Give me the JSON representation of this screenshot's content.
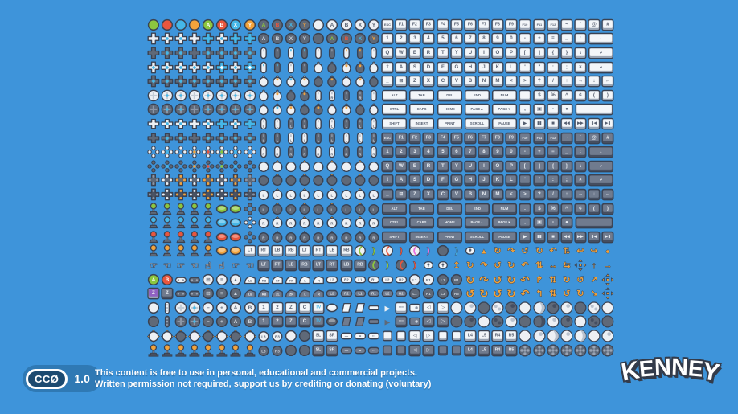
{
  "palette": {
    "background": "#3e94da",
    "outline": "#3a4252",
    "gr": "#8cc63e",
    "rd": "#e8563e",
    "bl": "#45b7e8",
    "or": "#f2a33c",
    "yl": "#f7b32a",
    "pu": "#9061c2",
    "mg": "#ea6fe0",
    "wh": "#edf0f4",
    "dk": "#5f6978",
    "mid": "#8b95a5",
    "badge_bg": "#2f79b4",
    "badge_capsule": "#1c4a70",
    "text": "#ffffff"
  },
  "license": {
    "badge": "CCØ",
    "version": "1.0"
  },
  "footer": {
    "line1": "This content is free to use in personal, educational and commercial projects.",
    "line2": "Written permission not required, support us by crediting or donating (voluntary)"
  },
  "logo": {
    "text": "KENNEY"
  },
  "grid": {
    "columns": 34,
    "rows": [
      [
        "c|gr",
        "c|rd",
        "c|bl",
        "c|or",
        "c|gr|A",
        "c|rd|B",
        "c|bl|X",
        "c|or|Y",
        "c|dk|A|gr",
        "c|dk|B|rd",
        "c|dk|X|bl",
        "c|dk|Y|or",
        "c|wh",
        "c|wh|A|dk",
        "c|wh|B|dk",
        "c|wh|X|dk",
        "c|wh|Y|dk",
        "k|ESC",
        "k|F1",
        "k|F2",
        "k|F3",
        "k|F4",
        "k|F5",
        "k|F6",
        "k|F7",
        "k|F8",
        "k|F9",
        "k|F10",
        "k|F11",
        "k|F12",
        "k|~",
        "k|`",
        "k|@",
        "k|#"
      ],
      [
        "x|wh",
        "x|wh|bl",
        "x|wh|bl",
        "x|wh",
        "x|bl",
        "x|wh|bl",
        "x|bl",
        "x|bl",
        "c|dk|A",
        "c|dk|B",
        "c|dk|X",
        "c|dk|Y",
        "c|dk",
        "c|dk|A|gr",
        "c|dk|B|rd",
        "c|dk|X|bl",
        "c|dk|Y|or",
        "k|1",
        "k|2",
        "k|3",
        "k|4",
        "k|5",
        "k|6",
        "k|7",
        "k|8",
        "k|9",
        "k|0",
        "k|-",
        "k|+",
        "k|=",
        "k|_",
        "k|:",
        "k|←|w2"
      ],
      [
        "x|dk",
        "x|dk|bl",
        "x|dk|bl",
        "x|dk",
        "x|dk|bl",
        "x|dk|bl",
        "x|dk|bl",
        "x|dk|bl",
        "m|wh",
        "m|dk",
        "m|wh|bl",
        "m|dk|bl",
        "m|wh",
        "m|dk",
        "m|wh|or",
        "m|dk|or",
        "m|wh",
        "k|Q",
        "k|W",
        "k|E",
        "k|R",
        "k|T",
        "k|Y",
        "k|U",
        "k|I",
        "k|O",
        "k|P",
        "k|[",
        "k|]",
        "k|{",
        "k|}",
        "k|\\",
        "k|↵|w2"
      ],
      [
        "x|wh|ct",
        "x|wh|ct",
        "x|wh|ct",
        "x|wh|ct",
        "x|wh|ct",
        "x|bl|ct",
        "x|wh|ct",
        "x|bl|ct",
        "m|wh|bl",
        "m|dk|bl",
        "m|wh",
        "m|dk",
        "m2|wh",
        "m2|dk",
        "m2|wh|or",
        "m2|dk|or",
        "m2|wh",
        "k|⇧",
        "k|A",
        "k|S",
        "k|D",
        "k|F",
        "k|G",
        "k|H",
        "k|J",
        "k|K",
        "k|L",
        "k|'",
        "k|\"",
        "k|:",
        "k|;",
        "k|×",
        "k|↵|w2"
      ],
      [
        "x|dk|ct",
        "x|dk|ct",
        "x|dk|ct",
        "x|dk|ct",
        "x|dk|ct",
        "x|dk|ct",
        "x|dk|ct",
        "x|dk|ct",
        "m2|wh",
        "m2|wh|or",
        "m2|wh|bl",
        "m2|wh|or",
        "m2|dk",
        "m2|dk|or",
        "m2|wh",
        "m2|wh|or",
        "m2|dk",
        "k|_",
        "k|⊞",
        "k|Z",
        "k|X",
        "k|C",
        "k|V",
        "k|B",
        "k|N",
        "k|M",
        "k|<",
        "k|>",
        "k|?",
        "k|/",
        "k|↑",
        "k|→",
        "k|↓",
        "k|←"
      ],
      [
        "D|wh",
        "D|wh|bl",
        "D|wh|bl",
        "D|wh",
        "D|wh|bl",
        "D|wh|bl",
        "D|wh|bl",
        "D|wh|bl",
        "m2|wh",
        "m2|wh|or",
        "m2|dk",
        "m2|dk|or",
        "m|wh|L",
        "m|wh|R",
        "m|dk|L",
        "m|dk|R",
        "m|wh",
        "k|ALT|w2",
        "k|TAB|w2",
        "k|DEL|w2",
        "k|END|w2",
        "k|NUM|w2",
        "k|.",
        "k|$",
        "k|%",
        "k|^",
        "k|¢",
        "k|(",
        "k|)"
      ],
      [
        "D|dk",
        "D|dk|bl",
        "D|dk|bl",
        "D|dk",
        "D|dk|bl",
        "D|dk|bl",
        "D|dk|bl",
        "D|dk|bl",
        "m2|wh",
        "m2|wh|bl",
        "m2|wh|or",
        "m2|dk",
        "m2|dk|or",
        "m2|wh",
        "m2|wh|or",
        "m2|dk",
        "m2|wh",
        "k|CTRL|w2",
        "k|CAPS|w2",
        "k|HOME|w2",
        "k|PAGE▲|w2",
        "k|PAGE▼|w2",
        "k|,",
        "k|▣",
        "k|▫",
        "k|●",
        "k| |w3"
      ],
      [
        "f|wh",
        "f|wh|bl",
        "f|wh|bl",
        "f|wh",
        "f|wh|bl",
        "f|bl",
        "f|wh|bl",
        "f|bl",
        "m|wh|L",
        "m|wh|L",
        "m|dk|L",
        "m|dk|L",
        "m|wh|L",
        "m|wh|L",
        "m|dk|L",
        "m|dk|L",
        "m|wh|L",
        "k|SHIFT|w2",
        "k|INSERT|w2",
        "k|PRINT|w2",
        "k|SCROLL|w2",
        "k|PAUSE|w2",
        "k|▶",
        "k|▮▮",
        "k|■",
        "k|◀◀",
        "k|▶▶",
        "k|▮◀",
        "k|▶▮"
      ],
      [
        "f|dk",
        "f|dk|bl",
        "f|dk|bl",
        "f|dk",
        "f|dk|bl",
        "f|dk|bl",
        "f|dk|bl",
        "f|dk|bl",
        "m|dk|L",
        "m|dk|L",
        "m|wh|L",
        "m|wh|L",
        "m|dk|L",
        "m|dk|L",
        "m|wh|L",
        "m|wh|L",
        "m|dk|L",
        "K|ESC",
        "K|F1",
        "K|F2",
        "K|F3",
        "K|F4",
        "K|F5",
        "K|F6",
        "K|F7",
        "K|F8",
        "K|F9",
        "K|F10",
        "K|F11",
        "K|F12",
        "K|~",
        "K|`",
        "K|@",
        "K|#"
      ],
      [
        "di|wh",
        "di|wh|bl",
        "di|wh",
        "di|wh|or",
        "di|wh|rd",
        "di|wh|gr",
        "di|wh|bl",
        "di|wh",
        "m|wh|R",
        "m|wh|R",
        "m|dk|R",
        "m|dk|R",
        "m|wh|R",
        "m|wh|R",
        "m|dk|R",
        "m|dk|R",
        "m|wh|R",
        "K|1",
        "K|2",
        "K|3",
        "K|4",
        "K|5",
        "K|6",
        "K|7",
        "K|8",
        "K|9",
        "K|0",
        "K|-",
        "K|+",
        "K|=",
        "K|_",
        "K|:",
        "K|←|w2"
      ],
      [
        "di|dk",
        "di|dk|bl",
        "di|dk",
        "di|dk|or",
        "di|dk|rd",
        "di|dk|gr",
        "di|dk|bl",
        "di|dk",
        "s|wh",
        "s|wh||up",
        "s|wh",
        "s|wh||up",
        "s|wh",
        "s|wh||up",
        "s|wh",
        "s|wh||up",
        "s|wh",
        "K|Q",
        "K|W",
        "K|E",
        "K|R",
        "K|T",
        "K|Y",
        "K|U",
        "K|I",
        "K|O",
        "K|P",
        "K|[",
        "K|]",
        "K|{",
        "K|}",
        "K|\\",
        "K|↵|w2"
      ],
      [
        "od|wh",
        "od|wh|dt",
        "od|wh|or",
        "od|wh|dt",
        "od|wh|or",
        "od|wh|dt",
        "od|wh|or",
        "od|wh",
        "s|dk",
        "s|dk||up",
        "s|dk",
        "s|dk||up",
        "s|dk",
        "s|dk||up",
        "s|dk",
        "s|dk||up",
        "s|dk",
        "K|⇧",
        "K|A",
        "K|S",
        "K|D",
        "K|F",
        "K|G",
        "K|H",
        "K|J",
        "K|K",
        "K|L",
        "K|'",
        "K|\"",
        "K|:",
        "K|;",
        "K|×",
        "K|↵|w2"
      ],
      [
        "od|dk",
        "od|dk|dt",
        "od|dk|or",
        "od|dk|dt",
        "od|dk|or",
        "od|dk|dt",
        "od|dk|or",
        "od|dk",
        "s|wh|L",
        "s|wh|L|up",
        "s|wh|L",
        "s|wh|L|up",
        "s|wh|L",
        "s|wh|L|up",
        "s|wh|L",
        "s|wh|L|up",
        "s|wh|L",
        "K|_",
        "K|⊞",
        "K|Z",
        "K|X",
        "K|C",
        "K|V",
        "K|B",
        "K|N",
        "K|M",
        "K|<",
        "K|>",
        "K|?",
        "K|/",
        "K|↑",
        "K|→",
        "K|↓",
        "K|←"
      ],
      [
        "j|gr",
        "j|gr",
        "j|gr",
        "j|gr",
        "j|gr",
        "ov|gr",
        "ov|gr",
        "di|dk",
        "s|dk|L",
        "s|dk|L|up",
        "s|dk|L",
        "s|dk|L|up",
        "s|dk|L",
        "s|dk|L|up",
        "s|dk|L",
        "s|dk|L|up",
        "s|dk|L",
        "K|ALT|w2",
        "K|TAB|w2",
        "K|DEL|w2",
        "K|END|w2",
        "K|NUM|w2",
        "K|.",
        "K|$",
        "K|%",
        "K|^",
        "K|¢",
        "K|(",
        "K|)"
      ],
      [
        "j|bl",
        "j|bl",
        "j|bl",
        "j|bl",
        "j|bl",
        "ov|bl",
        "ov|bl",
        "di|wh",
        "s|wh|R",
        "s|wh|R|up",
        "s|wh|R",
        "s|wh|R|up",
        "s|wh|R",
        "s|wh|R|up",
        "s|wh|R",
        "s|wh|R|up",
        "s|wh|R",
        "K|CTRL|w2",
        "K|CAPS|w2",
        "K|HOME|w2",
        "K|PAGE▲|w2",
        "K|PAGE▼|w2",
        "K|,",
        "K|▣",
        "K|▫",
        "K|●",
        "K| |w3"
      ],
      [
        "j|rd",
        "j|rd",
        "j|rd",
        "j|rd",
        "j|rd",
        "ov|rd",
        "ov|rd",
        "di|dk",
        "s|dk|R",
        "s|dk|R|up",
        "s|dk|R",
        "s|dk|R|up",
        "s|dk|R",
        "s|dk|R|up",
        "s|dk|R",
        "s|dk|R|up",
        "s|dk|R",
        "K|SHIFT|w2",
        "K|INSERT|w2",
        "K|PRINT|w2",
        "K|SCROLL|w2",
        "K|PAUSE|w2",
        "K|▶",
        "K|▮▮",
        "K|■",
        "K|◀◀",
        "K|▶▶",
        "K|▮◀",
        "K|▶▮"
      ],
      [
        "j|or",
        "j|or",
        "j|or",
        "j|or",
        "j|or",
        "ov|or",
        "ov|or",
        "k|LT",
        "k|RT",
        "k|LB",
        "k|RB",
        "k|LT",
        "k|RT",
        "k|LB",
        "k|RB",
        "br|gr",
        "tb|gr",
        "br|rd",
        "tb|rd",
        "br|mg",
        "tb|mg",
        "c|dk",
        "tb|bl",
        "mic|wh",
        "g|▲|or",
        "a|↻",
        "a|↷",
        "a|↺",
        "a|↻",
        "a|↶",
        "a|⇅",
        "a|↩",
        "a|↪",
        "g|●|or"
      ],
      [
        "h|☞",
        "h|☜",
        "h|☞",
        "h|☜",
        "h|☝",
        "h|☝",
        "h|☞",
        "h|☜",
        "K|LT",
        "K|RT",
        "K|LB",
        "K|RB",
        "K|LT",
        "K|RT",
        "K|LB",
        "K|RB",
        "br|gr|dk",
        "tb|gr",
        "br|rd|dk",
        "tb|rd",
        "mic|wh",
        "mic|wh",
        "a|↥",
        "a|↻",
        "a|↷",
        "a|↺",
        "a|↻",
        "a|↶",
        "a|⇅",
        "a|↔",
        "a|⇆",
        "a4",
        "a|↑",
        "a|→"
      ],
      [
        "c|gr|A",
        "c|rd|B",
        "gp|wh",
        "gp|dk",
        "c|wh|⊞|dk",
        "c|wh|≡|dk",
        "c|wh|▲|dk",
        "sh|LB",
        "sh|RB",
        "sh|LT",
        "sh|RT",
        "sh|L",
        "sh|R",
        "p|L2",
        "p|R2",
        "p|L1",
        "p|R1",
        "p|L2",
        "p|R2",
        "c|wh|L1|dk",
        "c|wh|R1|dk",
        "c|dk|L1",
        "c|dk|R1",
        "ab|↻",
        "ab|↷",
        "ab|↺",
        "ab|↻",
        "ab|↶",
        "a|↱",
        "a|⇅",
        "a|↻",
        "a|↺",
        "a|↗",
        "a4"
      ],
      [
        "k|Z|pu",
        "K|Z",
        "gp|dk",
        "gp|dk",
        "c|dk|⊞",
        "c|dk|≡",
        "c|dk|▲",
        "SH|LB",
        "SH|RB",
        "SH|ZL",
        "SH|ZR",
        "SH|L",
        "SH|R",
        "P|L2",
        "P|R2",
        "P|L1",
        "P|R1",
        "P|L2",
        "P|R2",
        "c|dk|L1",
        "c|dk|R1",
        "c|dk|L3",
        "c|dk|R3",
        "ab|↺",
        "ab|↻",
        "ab|↺",
        "ab|↻",
        "ab|↶",
        "a|↰",
        "a|⇅",
        "a|↺",
        "a|↻",
        "a|↘",
        "a4"
      ],
      [
        "c|wh",
        "w|wh",
        "D|wh",
        "D|wh|bl",
        "c|wh|−|dk",
        "c|wh|+|dk",
        "c|wh|A|dk",
        "c|wh|B|dk",
        "k|1",
        "k|2",
        "k|Z",
        "k|C",
        "k|TV|tv",
        "ov|wh",
        "sl|wh",
        "sl|wh",
        "rc|wh",
        "g|▶|wh",
        "k|⋯",
        "tpd|wh",
        "k|◁",
        "k|▷",
        "tp|wh",
        "tp|wh|dt",
        "tp|dk",
        "tp|wh|dt2",
        "tp|dk|dt",
        "tp|wh",
        "tp|wh|mn",
        "tp|dk|dt",
        "tp|wh|dt",
        "tp|dk",
        "tp|wh|dt2",
        "tp|wh"
      ],
      [
        "c|dk",
        "w|dk",
        "D|dk",
        "D|dk|bl",
        "c|dk|−",
        "c|dk|+",
        "c|dk|A",
        "c|dk|B",
        "K|1",
        "K|2",
        "K|Z",
        "K|C",
        "K|TV|tv",
        "ov|dk",
        "sl|dk",
        "sl|dk",
        "rc|dk",
        "g|▶|dk",
        "K|⋯",
        "tpd|dk",
        "K|◁",
        "K|▷",
        "tp|dk",
        "tp|dk|dt",
        "tp|wh",
        "tp|dk|dt2",
        "tp|wh|dt",
        "tp|dk",
        "tp|dk|mn",
        "tp|wh|dt",
        "tp|dk|dt",
        "tp|wh",
        "tp|dk|dt2",
        "tp|dk"
      ],
      [
        "s|wh||4",
        "s|wh||4",
        "s|dk||4",
        "s|wh||4",
        "s|dk||4",
        "s|wh||4",
        "s|dk||4",
        "s|wh||4",
        "s|wh|L3",
        "s|wh|R3",
        "c|wh",
        "c|dk",
        "k|SL",
        "k|SR",
        "p|—",
        "p|≡",
        "p|⋯",
        "sq|wh",
        "sq|wh",
        "k|◁",
        "k|▷",
        "sq|wh",
        "sq|wh",
        "k|L4",
        "k|L5",
        "k|R4",
        "k|R5",
        "tp|wh",
        "tp|wh|dt",
        "tp|wh|mn",
        "tp|wh|dt",
        "tp|wh|mn",
        "tp|wh",
        "tp|wh|dt"
      ],
      [
        "j2|or",
        "j2|or",
        "j2|or",
        "j2|or",
        "j2|or",
        "j2|or",
        "j2|or",
        "j2|or",
        "s|dk|L3",
        "s|dk|R3",
        "c|dk",
        "c|dk",
        "K|SL",
        "K|SR",
        "P|—",
        "P|≡",
        "P|⋯",
        "sq|dk",
        "sq|dk",
        "K|◁",
        "K|▷",
        "sq|dk",
        "sq|dk",
        "K|L4",
        "K|L5",
        "K|R4",
        "K|R5",
        "tp|dk|x",
        "tp|dk|x",
        "tp|dk|x",
        "tp|dk|x",
        "tp|dk|x",
        "tp|dk|x",
        "tp|dk|x"
      ]
    ]
  }
}
